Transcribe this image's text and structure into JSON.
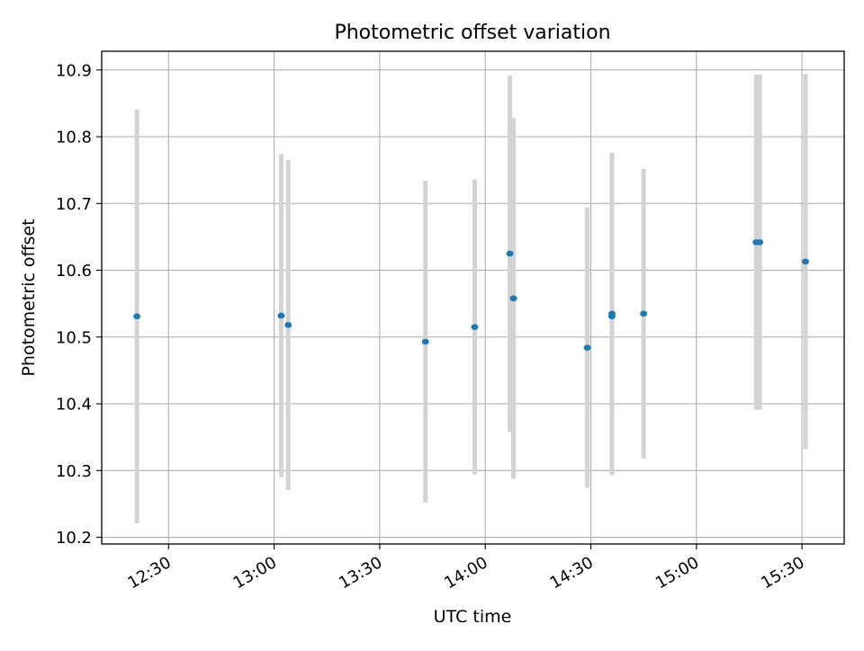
{
  "chart_data": {
    "type": "scatter",
    "title": "Photometric offset variation",
    "xlabel": "UTC time",
    "ylabel": "Photometric offset",
    "x_tick_labels": [
      "12:30",
      "13:00",
      "13:30",
      "14:00",
      "14:30",
      "15:00",
      "15:30"
    ],
    "x_tick_times": [
      "12:30",
      "13:00",
      "13:30",
      "14:00",
      "14:30",
      "15:00",
      "15:30"
    ],
    "y_tick_labels": [
      "10.2",
      "10.3",
      "10.4",
      "10.5",
      "10.6",
      "10.7",
      "10.8",
      "10.9"
    ],
    "y_ticks": [
      10.2,
      10.3,
      10.4,
      10.5,
      10.6,
      10.7,
      10.8,
      10.9
    ],
    "xlim": [
      "12:11",
      "15:42"
    ],
    "ylim": [
      10.19,
      10.928
    ],
    "grid": true,
    "marker_color": "#1f77b4",
    "errorbar_color": "#d3d3d3",
    "points": [
      {
        "x": "12:21",
        "y": 10.531,
        "yerr": 0.31
      },
      {
        "x": "13:02",
        "y": 10.532,
        "yerr": 0.242
      },
      {
        "x": "13:04",
        "y": 10.518,
        "yerr": 0.247
      },
      {
        "x": "13:43",
        "y": 10.493,
        "yerr": 0.241
      },
      {
        "x": "13:57",
        "y": 10.515,
        "yerr": 0.221
      },
      {
        "x": "14:07",
        "y": 10.625,
        "yerr": 0.267
      },
      {
        "x": "14:08",
        "y": 10.558,
        "yerr": 0.27
      },
      {
        "x": "14:29",
        "y": 10.484,
        "yerr": 0.21
      },
      {
        "x": "14:36",
        "y": 10.535,
        "yerr": 0.241
      },
      {
        "x": "14:36",
        "y": 10.531,
        "yerr": 0.238
      },
      {
        "x": "14:45",
        "y": 10.535,
        "yerr": 0.217
      },
      {
        "x": "15:17",
        "y": 10.642,
        "yerr": 0.251
      },
      {
        "x": "15:18",
        "y": 10.642,
        "yerr": 0.251
      },
      {
        "x": "15:31",
        "y": 10.613,
        "yerr": 0.281
      }
    ]
  }
}
